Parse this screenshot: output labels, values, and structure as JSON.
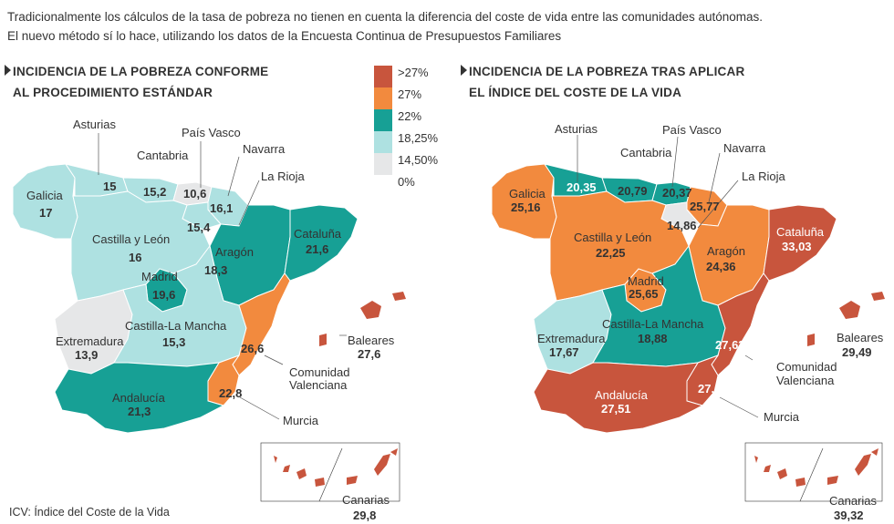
{
  "intro": {
    "line1": "Tradicionalmente los cálculos de la tasa de pobreza no tienen en cuenta la diferencia del coste de vida entre las comunidades autónomas.",
    "line2": "El nuevo método sí lo hace, utilizando los datos de la Encuesta Continua de Presupuestos Familiares"
  },
  "colors": {
    "gt27": "#c8553d",
    "c27": "#f28a3e",
    "c22": "#17a095",
    "c1825": "#aee1e1",
    "c1450": "#e6e7e8",
    "c0": "#f4f4f4"
  },
  "legend": [
    {
      "label": ">27%",
      "color": "#c8553d"
    },
    {
      "label": "27%",
      "color": "#f28a3e"
    },
    {
      "label": "22%",
      "color": "#17a095"
    },
    {
      "label": "18,25%",
      "color": "#aee1e1"
    },
    {
      "label": "14,50%",
      "color": "#e6e7e8"
    },
    {
      "label": "0%",
      "color": "#ffffff"
    }
  ],
  "map_left": {
    "title_line1": "INCIDENCIA DE LA POBREZA CONFORME",
    "title_line2": "AL PROCEDIMIENTO ESTÁNDAR",
    "regions": {
      "galicia": {
        "name": "Galicia",
        "value": "17"
      },
      "asturias": {
        "name": "Asturias",
        "value": "15"
      },
      "cantabria": {
        "name": "Cantabria",
        "value": "15,2"
      },
      "pais_vasco": {
        "name": "País Vasco",
        "value": "10,6"
      },
      "navarra": {
        "name": "Navarra",
        "value": "16,1"
      },
      "la_rioja": {
        "name": "La Rioja",
        "value": "15,4"
      },
      "castilla_leon": {
        "name": "Castilla  y León",
        "value": "16"
      },
      "aragon": {
        "name": "Aragón",
        "value": "18,3"
      },
      "cataluna": {
        "name": "Cataluña",
        "value": "21,6"
      },
      "madrid": {
        "name": "Madrid",
        "value": "19,6"
      },
      "extremadura": {
        "name": "Extremadura",
        "value": "13,9"
      },
      "castilla_mancha": {
        "name": "Castilla-La Mancha",
        "value": "15,3"
      },
      "valenciana": {
        "name1": "Comunidad",
        "name2": "Valenciana",
        "value": "26,6"
      },
      "murcia": {
        "name": "Murcia",
        "value": "22,8"
      },
      "andalucia": {
        "name": "Andalucía",
        "value": "21,3"
      },
      "baleares": {
        "name": "Baleares",
        "value": "27,6"
      },
      "canarias": {
        "name": "Canarias",
        "value": "29,8"
      }
    }
  },
  "map_right": {
    "title_line1": "INCIDENCIA DE LA POBREZA TRAS APLICAR",
    "title_line2": "EL ÍNDICE DEL COSTE DE LA VIDA",
    "regions": {
      "galicia": {
        "name": "Galicia",
        "value": "25,16"
      },
      "asturias": {
        "name": "Asturias",
        "value": "20,35"
      },
      "cantabria": {
        "name": "Cantabria",
        "value": "20,79"
      },
      "pais_vasco": {
        "name": "País Vasco",
        "value": "20,37"
      },
      "navarra": {
        "name": "Navarra",
        "value": "25,77"
      },
      "la_rioja": {
        "name": "La Rioja",
        "value": "14,86"
      },
      "castilla_leon": {
        "name": "Castilla  y León",
        "value": "22,25"
      },
      "aragon": {
        "name": "Aragón",
        "value": "24,36"
      },
      "cataluna": {
        "name": "Cataluña",
        "value": "33,03"
      },
      "madrid": {
        "name": "Madrid",
        "value": "25,65"
      },
      "extremadura": {
        "name": "Extremadura",
        "value": "17,67"
      },
      "castilla_mancha": {
        "name": "Castilla-La Mancha",
        "value": "18,88"
      },
      "valenciana": {
        "name1": "Comunidad",
        "name2": "Valenciana",
        "value": "27,63"
      },
      "murcia": {
        "name": "Murcia",
        "value": "27,6"
      },
      "andalucia": {
        "name": "Andalucía",
        "value": "27,51"
      },
      "baleares": {
        "name": "Baleares",
        "value": "29,49"
      },
      "canarias": {
        "name": "Canarias",
        "value": "39,32"
      }
    }
  },
  "footnote": "ICV: Índice del Coste de la Vida"
}
